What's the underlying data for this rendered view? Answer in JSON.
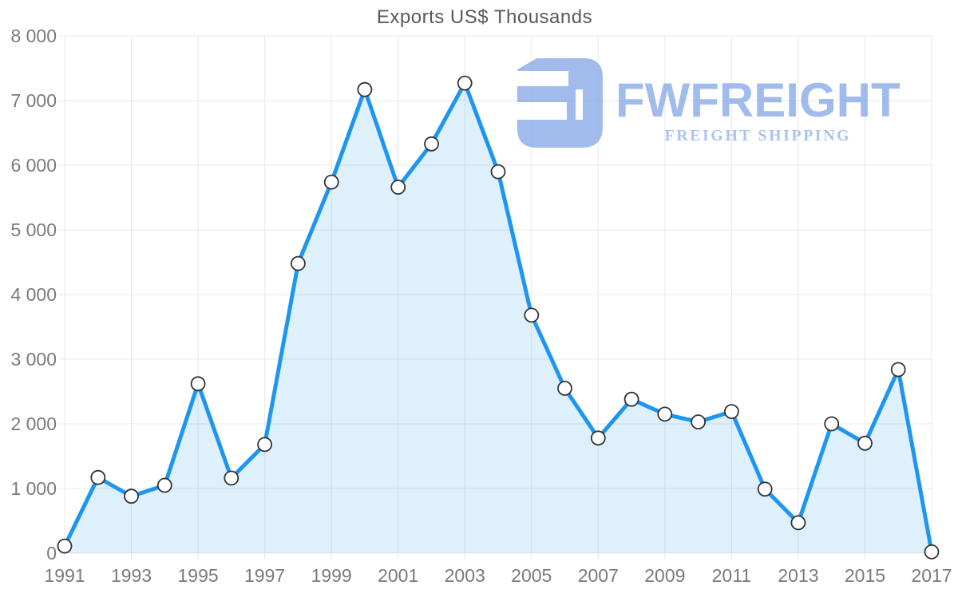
{
  "chart_data": {
    "type": "area",
    "title": "Exports US$ Thousands",
    "xlabel": "",
    "ylabel": "",
    "x": [
      1991,
      1992,
      1993,
      1994,
      1995,
      1996,
      1997,
      1998,
      1999,
      2000,
      2001,
      2002,
      2003,
      2004,
      2005,
      2006,
      2007,
      2008,
      2009,
      2010,
      2011,
      2012,
      2013,
      2014,
      2015,
      2016,
      2017
    ],
    "values": [
      110,
      1170,
      880,
      1050,
      2620,
      1160,
      1680,
      4480,
      5740,
      7170,
      5660,
      6330,
      7270,
      5900,
      3680,
      2550,
      1780,
      2380,
      2150,
      2030,
      2190,
      990,
      470,
      2000,
      1700,
      2840,
      20
    ],
    "xlim": [
      1991,
      2017
    ],
    "ylim": [
      0,
      8000
    ],
    "xtick_labels": [
      "1991",
      "1993",
      "1995",
      "1997",
      "1999",
      "2001",
      "2003",
      "2005",
      "2007",
      "2009",
      "2011",
      "2013",
      "2015",
      "2017"
    ],
    "ytick_labels": [
      "0",
      "1 000",
      "2 000",
      "3 000",
      "4 000",
      "5 000",
      "6 000",
      "7 000",
      "8 000"
    ],
    "grid": true,
    "legend": false,
    "marker": "open-circle"
  },
  "colors": {
    "line": "#1e96f0",
    "area_fill": "rgba(30,150,240,0.14)",
    "marker_fill": "#ffffff",
    "marker_stroke": "#333333",
    "gridline": "#e8e8e8",
    "axis_text": "#7a7a7a",
    "title_text": "#595959",
    "watermark": "#7ea3e6"
  },
  "watermark": {
    "brand": "FWFREIGHT",
    "tagline": "FREIGHT SHIPPING"
  }
}
